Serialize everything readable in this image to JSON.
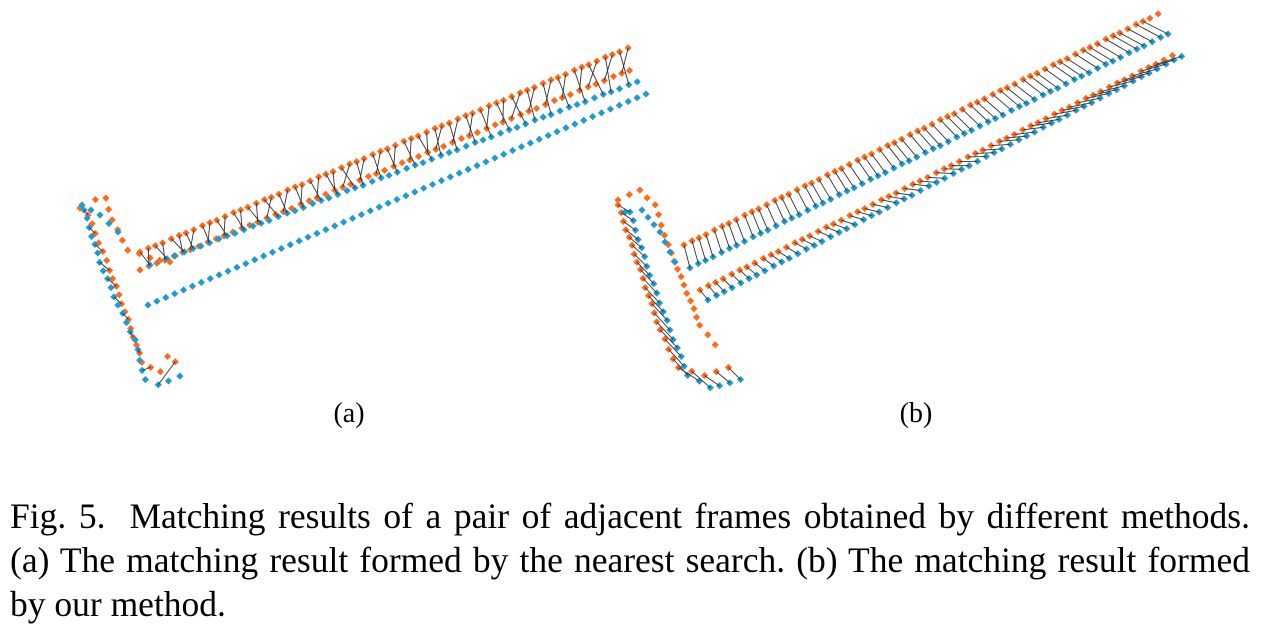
{
  "figure": {
    "colors": {
      "frame_a": "#ff6a1a",
      "frame_b": "#1f9bcf",
      "match_line": "#333333"
    },
    "panels": [
      {
        "label": "(a)"
      },
      {
        "label": "(b)"
      }
    ]
  },
  "caption": {
    "number": "Fig. 5.",
    "text": "Matching results of a pair of adjacent frames obtained by different methods. (a) The matching result formed by the nearest search. (b) The matching result formed by our method."
  }
}
